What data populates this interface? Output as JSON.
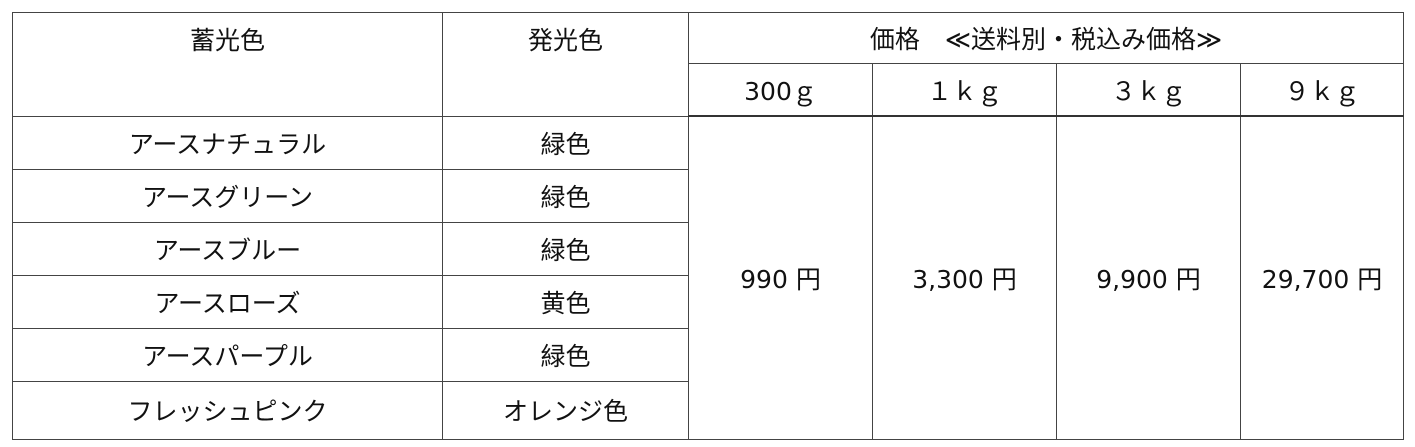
{
  "header": {
    "pigment": "蓄光色",
    "glow": "発光色",
    "price": "価格　≪送料別・税込み価格≫",
    "sizes": [
      "300ｇ",
      "１ｋｇ",
      "３ｋｇ",
      "９ｋｇ"
    ]
  },
  "rows": [
    {
      "name": "アースナチュラル",
      "glow": "緑色"
    },
    {
      "name": "アースグリーン",
      "glow": "緑色"
    },
    {
      "name": "アースブルー",
      "glow": "緑色"
    },
    {
      "name": "アースローズ",
      "glow": "黄色"
    },
    {
      "name": "アースパープル",
      "glow": "緑色"
    },
    {
      "name": "フレッシュピンク",
      "glow": "オレンジ色"
    }
  ],
  "prices": [
    "990 円",
    "3,300 円",
    "9,900 円",
    "29,700 円"
  ]
}
